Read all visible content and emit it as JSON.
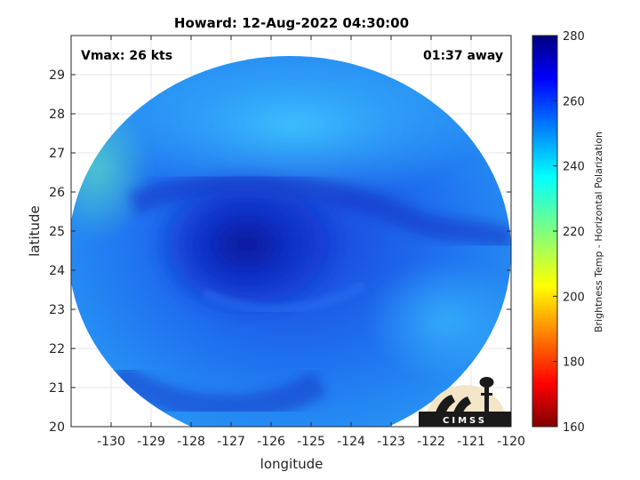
{
  "chart_data": {
    "type": "heatmap",
    "title": "Howard: 12-Aug-2022 04:30:00",
    "xlabel": "longitude",
    "ylabel": "latitude",
    "xlim": [
      -131,
      -120
    ],
    "ylim": [
      20,
      30
    ],
    "xticks": [
      -130,
      -129,
      -128,
      -127,
      -126,
      -125,
      -124,
      -123,
      -122,
      -121,
      -120
    ],
    "yticks": [
      20,
      21,
      22,
      23,
      24,
      25,
      26,
      27,
      28,
      29
    ],
    "grid": true,
    "annotations": {
      "vmax": "Vmax: 26 kts",
      "time_offset": "01:37 away"
    },
    "colorbar": {
      "label": "Brightness Temp - Horizontal Polarization",
      "range": [
        160,
        280
      ],
      "ticks": [
        160,
        180,
        200,
        220,
        240,
        260,
        280
      ],
      "colormap": "jet"
    },
    "swath": {
      "center": [
        -125.4,
        24.9
      ],
      "cold_center": [
        -126.2,
        24.6
      ],
      "cold_center_value": 266,
      "background_value": 246
    },
    "logo_text": "CIMSS"
  }
}
